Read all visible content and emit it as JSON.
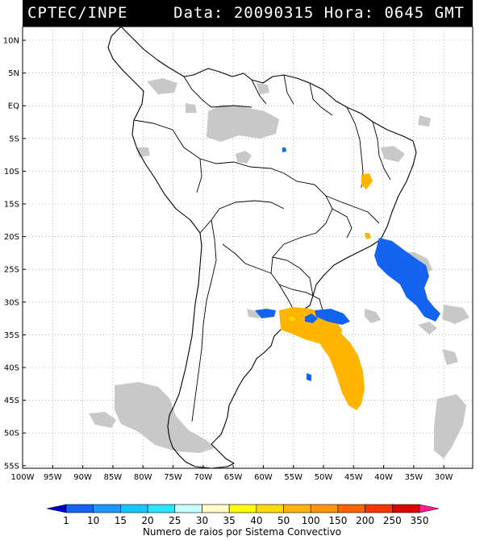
{
  "header": {
    "source": "CPTEC/INPE",
    "date_label": "Data:",
    "date": "20090315",
    "time_label": "Hora:",
    "time": "0645",
    "timezone": "GMT"
  },
  "map": {
    "lat_labels": [
      "10N",
      "5N",
      "EQ",
      "5S",
      "10S",
      "15S",
      "20S",
      "25S",
      "30S",
      "35S",
      "40S",
      "45S",
      "50S",
      "55S"
    ],
    "lon_labels": [
      "100W",
      "95W",
      "90W",
      "85W",
      "80W",
      "75W",
      "70W",
      "65W",
      "60W",
      "55W",
      "50W",
      "45W",
      "40W",
      "35W",
      "30W"
    ],
    "grid": "dotted"
  },
  "legend": {
    "labels": [
      "1",
      "10",
      "15",
      "20",
      "25",
      "30",
      "35",
      "40",
      "50",
      "100",
      "150",
      "200",
      "250",
      "350"
    ],
    "colors": [
      "#0000c8",
      "#1464f0",
      "#1e96ff",
      "#14c8ff",
      "#28e6ff",
      "#c8ffff",
      "#ffffc8",
      "#ffff00",
      "#ffdc00",
      "#ffb400",
      "#ff9600",
      "#ff6400",
      "#ff3200",
      "#dc0000",
      "#ff1e96"
    ],
    "title": "Numero de raios por Sistema Convectivo"
  }
}
